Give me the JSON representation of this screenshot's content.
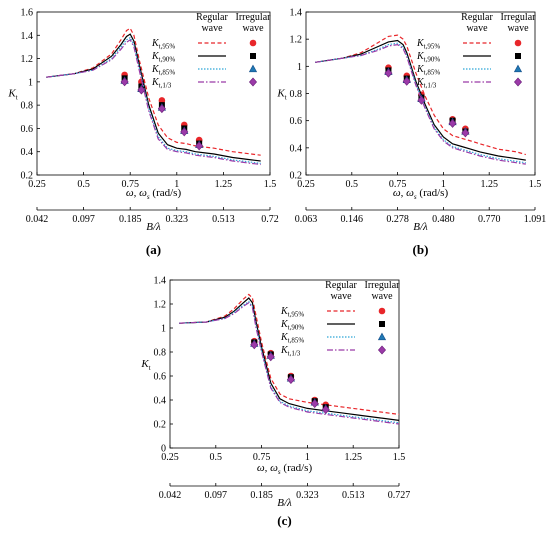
{
  "chart_data": [
    {
      "type": "line",
      "panel_label": "(a)",
      "ylabel": "K",
      "ylabel_sub": "t",
      "xlabel": "ω, ω",
      "xlabel_sub": "s",
      "xlabel_unit": " (rad/s)",
      "x2label": "B/λ",
      "xlim": [
        0.25,
        1.5
      ],
      "ylim": [
        0.2,
        1.6
      ],
      "xticks": [
        "0.25",
        "0.5",
        "0.75",
        "1",
        "1.25",
        "1.5"
      ],
      "yticks": [
        "0.2",
        "0.4",
        "0.6",
        "0.8",
        "1",
        "1.2",
        "1.4",
        "1.6"
      ],
      "x2ticks": [
        "0.042",
        "0.097",
        "0.185",
        "0.323",
        "0.513",
        "0.72"
      ],
      "legend_headers": [
        "Regular",
        "wave",
        "Irregular",
        "wave"
      ],
      "series": [
        {
          "name": "K",
          "sub": "t,95%",
          "color": "#e8262a",
          "dash": "4,2.5",
          "marker": "circle",
          "x": [
            0.3,
            0.45,
            0.55,
            0.65,
            0.7,
            0.73,
            0.75,
            0.77,
            0.8,
            0.85,
            0.9,
            0.95,
            1.0,
            1.05,
            1.1,
            1.15,
            1.2,
            1.3,
            1.4,
            1.45
          ],
          "y": [
            1.04,
            1.07,
            1.12,
            1.24,
            1.36,
            1.44,
            1.46,
            1.4,
            1.18,
            0.86,
            0.63,
            0.52,
            0.48,
            0.47,
            0.45,
            0.44,
            0.43,
            0.4,
            0.38,
            0.37
          ],
          "mx": [
            0.72,
            0.81,
            0.92,
            1.04,
            1.12
          ],
          "my": [
            1.06,
            1.0,
            0.84,
            0.63,
            0.5
          ]
        },
        {
          "name": "K",
          "sub": "t,90%",
          "color": "#000000",
          "dash": "",
          "marker": "square",
          "x": [
            0.3,
            0.45,
            0.55,
            0.65,
            0.7,
            0.73,
            0.75,
            0.77,
            0.8,
            0.85,
            0.9,
            0.95,
            1.0,
            1.05,
            1.1,
            1.15,
            1.2,
            1.3,
            1.4,
            1.45
          ],
          "y": [
            1.04,
            1.07,
            1.11,
            1.22,
            1.32,
            1.39,
            1.41,
            1.35,
            1.14,
            0.8,
            0.56,
            0.46,
            0.43,
            0.42,
            0.4,
            0.39,
            0.38,
            0.35,
            0.33,
            0.32
          ],
          "mx": [
            0.72,
            0.81,
            0.92,
            1.04,
            1.12
          ],
          "my": [
            1.03,
            0.96,
            0.8,
            0.6,
            0.47
          ]
        },
        {
          "name": "K",
          "sub": "t,85%",
          "color": "#2fa6d8",
          "dash": "1.5,1.5",
          "marker": "triangle",
          "x": [
            0.3,
            0.45,
            0.55,
            0.65,
            0.7,
            0.73,
            0.75,
            0.77,
            0.8,
            0.85,
            0.9,
            0.95,
            1.0,
            1.05,
            1.1,
            1.15,
            1.2,
            1.3,
            1.4,
            1.45
          ],
          "y": [
            1.04,
            1.07,
            1.1,
            1.2,
            1.3,
            1.36,
            1.38,
            1.32,
            1.11,
            0.77,
            0.53,
            0.43,
            0.41,
            0.4,
            0.38,
            0.37,
            0.36,
            0.33,
            0.31,
            0.3
          ],
          "mx": [
            0.72,
            0.81,
            0.92,
            1.04,
            1.12
          ],
          "my": [
            1.01,
            0.94,
            0.78,
            0.58,
            0.46
          ]
        },
        {
          "name": "K",
          "sub": "t,1/3",
          "color": "#9b3aa8",
          "dash": "6,2,1.5,2",
          "marker": "diamond",
          "x": [
            0.3,
            0.45,
            0.55,
            0.65,
            0.7,
            0.73,
            0.75,
            0.77,
            0.8,
            0.85,
            0.9,
            0.95,
            1.0,
            1.05,
            1.1,
            1.15,
            1.2,
            1.3,
            1.4,
            1.45
          ],
          "y": [
            1.04,
            1.07,
            1.1,
            1.19,
            1.28,
            1.34,
            1.36,
            1.3,
            1.09,
            0.75,
            0.51,
            0.42,
            0.4,
            0.39,
            0.37,
            0.36,
            0.35,
            0.32,
            0.3,
            0.29
          ],
          "mx": [
            0.72,
            0.81,
            0.92,
            1.04,
            1.12
          ],
          "my": [
            1.0,
            0.93,
            0.77,
            0.57,
            0.45
          ]
        }
      ]
    },
    {
      "type": "line",
      "panel_label": "(b)",
      "ylabel": "K",
      "ylabel_sub": "t",
      "xlabel": "ω, ω",
      "xlabel_sub": "s",
      "xlabel_unit": " (rad/s)",
      "x2label": "B/λ",
      "xlim": [
        0.25,
        1.5
      ],
      "ylim": [
        0.2,
        1.4
      ],
      "xticks": [
        "0.25",
        "0.5",
        "0.75",
        "1",
        "1.25",
        "1.5"
      ],
      "yticks": [
        "0.2",
        "0.4",
        "0.6",
        "0.8",
        "1",
        "1.2",
        "1.4"
      ],
      "x2ticks": [
        "0.063",
        "0.146",
        "0.278",
        "0.480",
        "0.770",
        "1.091"
      ],
      "legend_headers": [
        "Regular",
        "wave",
        "Irregular",
        "wave"
      ],
      "series": [
        {
          "name": "K",
          "sub": "t,95%",
          "color": "#e8262a",
          "dash": "4,2.5",
          "marker": "circle",
          "x": [
            0.3,
            0.45,
            0.55,
            0.65,
            0.7,
            0.75,
            0.78,
            0.8,
            0.85,
            0.9,
            0.95,
            1.0,
            1.05,
            1.1,
            1.15,
            1.2,
            1.3,
            1.4,
            1.45
          ],
          "y": [
            1.03,
            1.06,
            1.1,
            1.18,
            1.22,
            1.23,
            1.2,
            1.15,
            0.95,
            0.78,
            0.64,
            0.54,
            0.49,
            0.47,
            0.45,
            0.43,
            0.39,
            0.37,
            0.35
          ],
          "mx": [
            0.7,
            0.8,
            0.88,
            1.05,
            1.12
          ],
          "my": [
            0.99,
            0.93,
            0.79,
            0.61,
            0.54
          ]
        },
        {
          "name": "K",
          "sub": "t,90%",
          "color": "#000000",
          "dash": "",
          "marker": "square",
          "x": [
            0.3,
            0.45,
            0.55,
            0.65,
            0.7,
            0.75,
            0.78,
            0.8,
            0.85,
            0.9,
            0.95,
            1.0,
            1.05,
            1.1,
            1.15,
            1.2,
            1.3,
            1.4,
            1.45
          ],
          "y": [
            1.03,
            1.06,
            1.09,
            1.15,
            1.18,
            1.19,
            1.16,
            1.1,
            0.89,
            0.72,
            0.57,
            0.48,
            0.43,
            0.41,
            0.39,
            0.37,
            0.34,
            0.32,
            0.31
          ],
          "mx": [
            0.7,
            0.8,
            0.88,
            1.05,
            1.12
          ],
          "my": [
            0.97,
            0.91,
            0.77,
            0.6,
            0.52
          ]
        },
        {
          "name": "K",
          "sub": "t,85%",
          "color": "#2fa6d8",
          "dash": "1.5,1.5",
          "marker": "triangle",
          "x": [
            0.3,
            0.45,
            0.55,
            0.65,
            0.7,
            0.75,
            0.78,
            0.8,
            0.85,
            0.9,
            0.95,
            1.0,
            1.05,
            1.1,
            1.15,
            1.2,
            1.3,
            1.4,
            1.45
          ],
          "y": [
            1.03,
            1.06,
            1.08,
            1.13,
            1.16,
            1.17,
            1.14,
            1.08,
            0.87,
            0.7,
            0.55,
            0.46,
            0.41,
            0.39,
            0.37,
            0.35,
            0.32,
            0.3,
            0.29
          ],
          "mx": [
            0.7,
            0.8,
            0.88,
            1.05,
            1.12
          ],
          "my": [
            0.96,
            0.9,
            0.76,
            0.59,
            0.52
          ]
        },
        {
          "name": "K",
          "sub": "t,1/3",
          "color": "#9b3aa8",
          "dash": "6,2,1.5,2",
          "marker": "diamond",
          "x": [
            0.3,
            0.45,
            0.55,
            0.65,
            0.7,
            0.75,
            0.78,
            0.8,
            0.85,
            0.9,
            0.95,
            1.0,
            1.05,
            1.1,
            1.15,
            1.2,
            1.3,
            1.4,
            1.45
          ],
          "y": [
            1.03,
            1.06,
            1.08,
            1.12,
            1.15,
            1.16,
            1.13,
            1.07,
            0.86,
            0.69,
            0.54,
            0.45,
            0.4,
            0.38,
            0.36,
            0.34,
            0.31,
            0.29,
            0.28
          ],
          "mx": [
            0.7,
            0.8,
            0.88,
            1.05,
            1.12
          ],
          "my": [
            0.95,
            0.89,
            0.75,
            0.58,
            0.51
          ]
        }
      ]
    },
    {
      "type": "line",
      "panel_label": "(c)",
      "ylabel": "K",
      "ylabel_sub": "t",
      "xlabel": "ω, ω",
      "xlabel_sub": "s",
      "xlabel_unit": " (rad/s)",
      "x2label": "B/λ",
      "xlim": [
        0.25,
        1.5
      ],
      "ylim": [
        0,
        1.4
      ],
      "xticks": [
        "0.25",
        "0.5",
        "0.75",
        "1",
        "1.25",
        "1.5"
      ],
      "yticks": [
        "0",
        "0.2",
        "0.4",
        "0.6",
        "0.8",
        "1",
        "1.2",
        "1.4"
      ],
      "x2ticks": [
        "0.042",
        "0.097",
        "0.185",
        "0.323",
        "0.513",
        "0.727"
      ],
      "legend_headers": [
        "Regular",
        "wave",
        "Irregular",
        "wave"
      ],
      "series": [
        {
          "name": "K",
          "sub": "t,95%",
          "color": "#e8262a",
          "dash": "4,2.5",
          "marker": "circle",
          "x": [
            0.3,
            0.45,
            0.55,
            0.6,
            0.65,
            0.68,
            0.7,
            0.72,
            0.75,
            0.8,
            0.85,
            0.9,
            1.0,
            1.1,
            1.2,
            1.3,
            1.4,
            1.5
          ],
          "y": [
            1.04,
            1.05,
            1.1,
            1.16,
            1.24,
            1.28,
            1.25,
            1.1,
            0.88,
            0.58,
            0.45,
            0.41,
            0.38,
            0.36,
            0.34,
            0.32,
            0.3,
            0.28
          ],
          "mx": [
            0.71,
            0.8,
            0.91,
            1.04,
            1.1
          ],
          "my": [
            0.89,
            0.79,
            0.6,
            0.4,
            0.36
          ]
        },
        {
          "name": "K",
          "sub": "t,90%",
          "color": "#000000",
          "dash": "",
          "marker": "square",
          "x": [
            0.3,
            0.45,
            0.55,
            0.6,
            0.65,
            0.68,
            0.7,
            0.72,
            0.75,
            0.8,
            0.85,
            0.9,
            1.0,
            1.1,
            1.2,
            1.3,
            1.4,
            1.5
          ],
          "y": [
            1.04,
            1.05,
            1.09,
            1.14,
            1.21,
            1.25,
            1.21,
            1.05,
            0.84,
            0.54,
            0.41,
            0.37,
            0.33,
            0.31,
            0.29,
            0.27,
            0.25,
            0.23
          ],
          "mx": [
            0.71,
            0.8,
            0.91,
            1.04,
            1.1
          ],
          "my": [
            0.88,
            0.78,
            0.59,
            0.39,
            0.34
          ]
        },
        {
          "name": "K",
          "sub": "t,85%",
          "color": "#2fa6d8",
          "dash": "1.5,1.5",
          "marker": "triangle",
          "x": [
            0.3,
            0.45,
            0.55,
            0.6,
            0.65,
            0.68,
            0.7,
            0.72,
            0.75,
            0.8,
            0.85,
            0.9,
            1.0,
            1.1,
            1.2,
            1.3,
            1.4,
            1.5
          ],
          "y": [
            1.04,
            1.05,
            1.08,
            1.13,
            1.19,
            1.22,
            1.18,
            1.02,
            0.81,
            0.51,
            0.39,
            0.35,
            0.31,
            0.29,
            0.27,
            0.25,
            0.23,
            0.21
          ],
          "mx": [
            0.71,
            0.8,
            0.91,
            1.04,
            1.1
          ],
          "my": [
            0.87,
            0.77,
            0.58,
            0.38,
            0.33
          ]
        },
        {
          "name": "K",
          "sub": "t,1/3",
          "color": "#9b3aa8",
          "dash": "6,2,1.5,2",
          "marker": "diamond",
          "x": [
            0.3,
            0.45,
            0.55,
            0.6,
            0.65,
            0.68,
            0.7,
            0.72,
            0.75,
            0.8,
            0.85,
            0.9,
            1.0,
            1.1,
            1.2,
            1.3,
            1.4,
            1.5
          ],
          "y": [
            1.04,
            1.05,
            1.08,
            1.12,
            1.18,
            1.21,
            1.17,
            1.0,
            0.8,
            0.5,
            0.38,
            0.34,
            0.3,
            0.28,
            0.26,
            0.24,
            0.22,
            0.2
          ],
          "mx": [
            0.71,
            0.8,
            0.91,
            1.04,
            1.1
          ],
          "my": [
            0.86,
            0.76,
            0.57,
            0.37,
            0.32
          ]
        }
      ]
    }
  ]
}
